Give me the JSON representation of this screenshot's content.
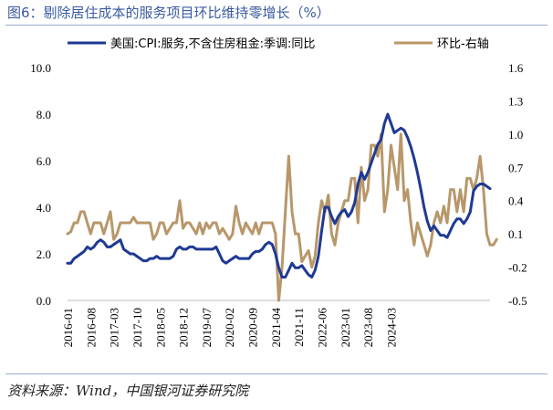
{
  "header": {
    "title": "图6：剔除居住成本的服务项目环比维持零增长（%）"
  },
  "footer": {
    "source": "资料来源：Wind，中国银河证券研究院"
  },
  "chart_data": {
    "type": "line",
    "title": "图6：剔除居住成本的服务项目环比维持零增长（%）",
    "legend_position": "top",
    "grid": false,
    "x_tick_labels": [
      "2016-01",
      "2016-08",
      "2017-03",
      "2017-10",
      "2018-05",
      "2018-12",
      "2019-07",
      "2020-02",
      "2020-09",
      "2021-04",
      "2021-11",
      "2022-06",
      "2023-01",
      "2023-08",
      "2024-03"
    ],
    "y_left": {
      "ylim": [
        0,
        10
      ],
      "ticks": [
        "0.0",
        "2.0",
        "4.0",
        "6.0",
        "8.0",
        "10.0"
      ]
    },
    "y_right": {
      "ylim": [
        -0.5,
        1.6
      ],
      "ticks": [
        "-0.5",
        "-0.2",
        "0.1",
        "0.4",
        "0.7",
        "1.0",
        "1.3",
        "1.6"
      ]
    },
    "series": [
      {
        "name": "美国:CPI:服务,不含住房租金:季调:同比",
        "axis": "left",
        "color": "#1f3a93",
        "start": "2016-01",
        "values": [
          1.6,
          1.6,
          1.8,
          1.9,
          2.0,
          2.1,
          2.3,
          2.2,
          2.3,
          2.5,
          2.6,
          2.5,
          2.3,
          2.3,
          2.4,
          2.5,
          2.6,
          2.2,
          2.1,
          2.0,
          2.0,
          1.9,
          1.8,
          1.7,
          1.7,
          1.8,
          1.8,
          1.9,
          1.8,
          1.8,
          1.8,
          1.8,
          1.9,
          2.2,
          2.3,
          2.2,
          2.2,
          2.3,
          2.3,
          2.2,
          2.2,
          2.2,
          2.2,
          2.2,
          2.2,
          2.3,
          2.0,
          1.7,
          1.6,
          1.7,
          1.8,
          1.9,
          1.8,
          1.8,
          1.8,
          1.8,
          2.0,
          2.1,
          2.1,
          2.2,
          2.4,
          2.5,
          2.4,
          2.0,
          1.4,
          1.0,
          1.0,
          1.3,
          1.6,
          1.4,
          1.4,
          1.5,
          1.3,
          1.1,
          1.0,
          1.3,
          1.9,
          3.0,
          4.0,
          4.0,
          3.6,
          3.3,
          3.6,
          3.8,
          3.9,
          3.6,
          3.8,
          4.2,
          5.0,
          5.5,
          5.2,
          5.5,
          5.9,
          6.3,
          6.7,
          6.9,
          7.6,
          8.0,
          7.6,
          7.2,
          7.3,
          7.4,
          7.3,
          7.0,
          6.6,
          6.1,
          5.5,
          4.8,
          4.0,
          3.4,
          3.0,
          3.2,
          3.0,
          2.8,
          2.8,
          2.7,
          3.0,
          3.3,
          3.5,
          3.5,
          3.3,
          3.5,
          3.8,
          4.7,
          4.9,
          5.0,
          5.0,
          4.9,
          4.8
        ]
      },
      {
        "name": "环比-右轴",
        "axis": "right",
        "color": "#b8976a",
        "start": "2016-01",
        "values": [
          0.1,
          0.12,
          0.2,
          0.2,
          0.3,
          0.3,
          0.2,
          0.1,
          0.2,
          0.2,
          0.2,
          0.1,
          0.2,
          0.3,
          0.05,
          0.1,
          0.2,
          0.2,
          0.2,
          0.2,
          0.25,
          0.2,
          0.2,
          0.2,
          0.2,
          0.2,
          0.05,
          0.1,
          0.2,
          0.2,
          0.1,
          0.15,
          0.2,
          0.2,
          0.4,
          0.15,
          0.2,
          0.2,
          0.15,
          0.1,
          0.2,
          0.1,
          0.2,
          0.15,
          0.2,
          0.2,
          0.1,
          0.15,
          0.1,
          0.05,
          0.1,
          0.35,
          0.2,
          0.1,
          0.2,
          0.15,
          0.1,
          0.2,
          0.1,
          0.2,
          0.2,
          0.2,
          0.2,
          0.1,
          -0.5,
          -0.2,
          0.3,
          0.8,
          0.3,
          0.1,
          0.1,
          -0.15,
          -0.1,
          -0.05,
          -0.2,
          -0.1,
          0.2,
          0.4,
          0.3,
          0.45,
          0.1,
          0.0,
          0.2,
          0.3,
          0.4,
          0.4,
          0.6,
          0.6,
          0.2,
          0.7,
          0.4,
          0.5,
          0.9,
          0.9,
          0.8,
          1.0,
          0.3,
          0.5,
          0.9,
          0.7,
          0.5,
          1.0,
          0.4,
          0.5,
          0.2,
          0.0,
          0.2,
          0.1,
          0.0,
          -0.1,
          0.0,
          0.2,
          0.3,
          0.2,
          0.35,
          0.2,
          0.5,
          0.5,
          0.3,
          0.5,
          0.3,
          0.6,
          0.6,
          0.5,
          0.6,
          0.8,
          0.5,
          0.1,
          0.0,
          0.0,
          0.05
        ]
      }
    ]
  }
}
